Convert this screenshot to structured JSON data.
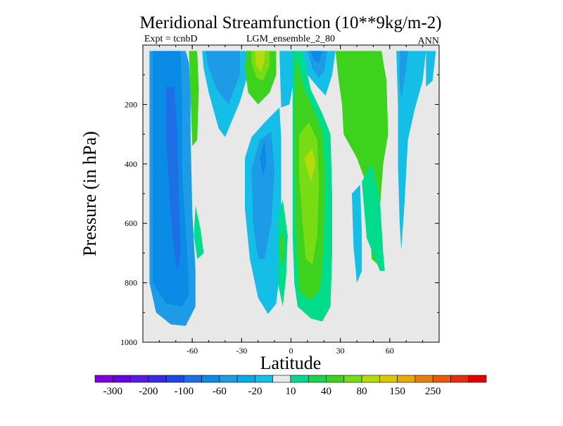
{
  "chart_data": {
    "type": "contour",
    "title": "Meridional Streamfunction (10**9kg/m-2)",
    "left_subtitle": "Expt = tcnbD",
    "center_subtitle": "LGM_ensemble_2_80",
    "right_subtitle": "ANN",
    "xlabel": "Latitude",
    "ylabel": "Pressure (in hPa)",
    "xlim": [
      -90,
      90
    ],
    "ylim": [
      0,
      1000
    ],
    "y_reversed": true,
    "x_ticks": [
      {
        "v": -60,
        "label": "-60"
      },
      {
        "v": -30,
        "label": "-30"
      },
      {
        "v": 0,
        "label": "0"
      },
      {
        "v": 30,
        "label": "30"
      },
      {
        "v": 60,
        "label": "60"
      }
    ],
    "y_ticks": [
      {
        "v": 200,
        "label": "200"
      },
      {
        "v": 400,
        "label": "400"
      },
      {
        "v": 600,
        "label": "600"
      },
      {
        "v": 800,
        "label": "800"
      },
      {
        "v": 1000,
        "label": "1000"
      }
    ],
    "background_color": "#e8e8e8",
    "colorbar": {
      "colors": [
        "#7f00dc",
        "#6a00e6",
        "#5a1ae6",
        "#3a28e6",
        "#1e46e6",
        "#1e6ee6",
        "#0a8ce6",
        "#1e9be6",
        "#0aaae6",
        "#14bee6",
        "#e8e8e8",
        "#00dc8c",
        "#1ed250",
        "#3cd21e",
        "#78dc14",
        "#b4dc0a",
        "#dcc80a",
        "#e6aa0a",
        "#e6800a",
        "#e65a0a",
        "#e62d0a",
        "#e60000"
      ],
      "labels": [
        {
          "after_box": 1,
          "text": "-300"
        },
        {
          "after_box": 3,
          "text": "-200"
        },
        {
          "after_box": 5,
          "text": "-100"
        },
        {
          "after_box": 7,
          "text": "-60"
        },
        {
          "after_box": 9,
          "text": "-20"
        },
        {
          "after_box": 11,
          "text": "10"
        },
        {
          "after_box": 13,
          "text": "40"
        },
        {
          "after_box": 15,
          "text": "80"
        },
        {
          "after_box": 17,
          "text": "150"
        },
        {
          "after_box": 19,
          "text": "250"
        }
      ]
    },
    "regions": [
      {
        "name": "sh-cell",
        "color": "#1e9be6",
        "points": [
          [
            -86,
            20
          ],
          [
            -64,
            20
          ],
          [
            -62,
            60
          ],
          [
            -61,
            150
          ],
          [
            -61,
            300
          ],
          [
            -60,
            560
          ],
          [
            -58,
            760
          ],
          [
            -58,
            880
          ],
          [
            -64,
            945
          ],
          [
            -73,
            940
          ],
          [
            -82,
            900
          ],
          [
            -86,
            800
          ],
          [
            -86,
            500
          ]
        ]
      },
      {
        "name": "sh-cell-inner",
        "color": "#0a8ce6",
        "points": [
          [
            -84,
            20
          ],
          [
            -67,
            20
          ],
          [
            -66,
            200
          ],
          [
            -66,
            450
          ],
          [
            -63,
            700
          ],
          [
            -62,
            840
          ],
          [
            -66,
            880
          ],
          [
            -76,
            870
          ],
          [
            -84,
            800
          ],
          [
            -84,
            400
          ]
        ]
      },
      {
        "name": "sh-cell-core",
        "color": "#1e6ee6",
        "points": [
          [
            -76,
            140
          ],
          [
            -71,
            140
          ],
          [
            -69,
            300
          ],
          [
            -68,
            560
          ],
          [
            -67,
            700
          ],
          [
            -69,
            760
          ],
          [
            -72,
            650
          ],
          [
            -74,
            480
          ],
          [
            -76,
            300
          ]
        ]
      },
      {
        "name": "band-46",
        "color": "#3cd21e",
        "points": [
          [
            -62,
            20
          ],
          [
            -57,
            20
          ],
          [
            -56,
            150
          ],
          [
            -57,
            320
          ],
          [
            -60,
            340
          ]
        ]
      },
      {
        "name": "band-42",
        "color": "#14bee6",
        "points": [
          [
            -54,
            20
          ],
          [
            -25,
            20
          ],
          [
            -25,
            75
          ],
          [
            -31,
            190
          ],
          [
            -40,
            310
          ],
          [
            -44,
            280
          ],
          [
            -50,
            160
          ],
          [
            -53,
            80
          ]
        ]
      },
      {
        "name": "band-42-inner",
        "color": "#1e9be6",
        "points": [
          [
            -52,
            20
          ],
          [
            -31,
            20
          ],
          [
            -31,
            100
          ],
          [
            -38,
            200
          ],
          [
            -45,
            150
          ],
          [
            -50,
            80
          ]
        ]
      },
      {
        "name": "green-lobe-35",
        "color": "#00dc8c",
        "points": [
          [
            -58,
            540
          ],
          [
            -55,
            620
          ],
          [
            -53,
            700
          ],
          [
            -57,
            720
          ],
          [
            -59,
            640
          ]
        ]
      },
      {
        "name": "green-upper-30",
        "color": "#3cd21e",
        "points": [
          [
            -27,
            20
          ],
          [
            -9,
            20
          ],
          [
            -9,
            100
          ],
          [
            -13,
            160
          ],
          [
            -20,
            200
          ],
          [
            -26,
            160
          ],
          [
            -28,
            80
          ]
        ]
      },
      {
        "name": "green-upper-30-inner",
        "color": "#78dc14",
        "points": [
          [
            -24,
            20
          ],
          [
            -13,
            20
          ],
          [
            -13,
            70
          ],
          [
            -17,
            120
          ],
          [
            -21,
            110
          ],
          [
            -24,
            60
          ]
        ]
      },
      {
        "name": "green-upper-30-core",
        "color": "#b4dc0a",
        "points": [
          [
            -22,
            20
          ],
          [
            -16,
            20
          ],
          [
            -16,
            45
          ],
          [
            -18,
            90
          ],
          [
            -21,
            70
          ]
        ]
      },
      {
        "name": "mid-blue-20",
        "color": "#14bee6",
        "points": [
          [
            -28,
            380
          ],
          [
            -24,
            310
          ],
          [
            -16,
            260
          ],
          [
            -7,
            210
          ],
          [
            -6,
            310
          ],
          [
            -6,
            500
          ],
          [
            -6,
            720
          ],
          [
            -9,
            870
          ],
          [
            -14,
            905
          ],
          [
            -20,
            850
          ],
          [
            -25,
            720
          ],
          [
            -28,
            550
          ]
        ]
      },
      {
        "name": "mid-blue-20-inner",
        "color": "#1e9be6",
        "points": [
          [
            -24,
            420
          ],
          [
            -19,
            320
          ],
          [
            -12,
            290
          ],
          [
            -10,
            420
          ],
          [
            -12,
            600
          ],
          [
            -16,
            720
          ],
          [
            -20,
            720
          ],
          [
            -23,
            600
          ]
        ]
      },
      {
        "name": "mid-blue-20-core",
        "color": "#0a8ce6",
        "points": [
          [
            -19,
            380
          ],
          [
            -16,
            320
          ],
          [
            -15,
            400
          ],
          [
            -17,
            440
          ]
        ]
      },
      {
        "name": "green-low-10",
        "color": "#00dc8c",
        "points": [
          [
            -8,
            580
          ],
          [
            -5,
            520
          ],
          [
            -2,
            640
          ],
          [
            -3,
            780
          ],
          [
            -5,
            880
          ],
          [
            -8,
            800
          ]
        ]
      },
      {
        "name": "green-low-10-inner",
        "color": "#3cd21e",
        "points": [
          [
            -7,
            660
          ],
          [
            -5,
            620
          ],
          [
            -4,
            720
          ],
          [
            -6,
            740
          ]
        ]
      },
      {
        "name": "right-blue-10",
        "color": "#14bee6",
        "points": [
          [
            -7,
            20
          ],
          [
            4,
            20
          ],
          [
            3,
            80
          ],
          [
            -1,
            200
          ],
          [
            -6,
            210
          ]
        ]
      },
      {
        "name": "north-green",
        "color": "#00dc8c",
        "points": [
          [
            1,
            20
          ],
          [
            7,
            20
          ],
          [
            12,
            150
          ],
          [
            19,
            230
          ],
          [
            24,
            300
          ],
          [
            25,
            500
          ],
          [
            25,
            700
          ],
          [
            24,
            880
          ],
          [
            19,
            930
          ],
          [
            12,
            920
          ],
          [
            4,
            880
          ],
          [
            2,
            800
          ],
          [
            1,
            640
          ],
          [
            1,
            400
          ],
          [
            1,
            200
          ]
        ]
      },
      {
        "name": "north-green-inner",
        "color": "#3cd21e",
        "points": [
          [
            3,
            40
          ],
          [
            8,
            150
          ],
          [
            14,
            220
          ],
          [
            19,
            290
          ],
          [
            21,
            440
          ],
          [
            20,
            650
          ],
          [
            18,
            820
          ],
          [
            12,
            860
          ],
          [
            5,
            830
          ],
          [
            3,
            650
          ],
          [
            2,
            400
          ],
          [
            2,
            200
          ]
        ]
      },
      {
        "name": "north-green-core",
        "color": "#78dc14",
        "points": [
          [
            5,
            300
          ],
          [
            11,
            260
          ],
          [
            16,
            320
          ],
          [
            17,
            460
          ],
          [
            16,
            640
          ],
          [
            13,
            740
          ],
          [
            9,
            720
          ],
          [
            7,
            600
          ],
          [
            5,
            450
          ]
        ]
      },
      {
        "name": "north-green-peak",
        "color": "#b4dc0a",
        "points": [
          [
            8,
            380
          ],
          [
            13,
            350
          ],
          [
            15,
            400
          ],
          [
            12,
            460
          ],
          [
            10,
            420
          ]
        ]
      },
      {
        "name": "upper-blue-15",
        "color": "#14bee6",
        "points": [
          [
            7,
            20
          ],
          [
            27,
            20
          ],
          [
            25,
            100
          ],
          [
            21,
            170
          ],
          [
            16,
            140
          ],
          [
            10,
            100
          ]
        ]
      },
      {
        "name": "upper-blue-15-inner",
        "color": "#1e9be6",
        "points": [
          [
            10,
            20
          ],
          [
            22,
            20
          ],
          [
            20,
            90
          ],
          [
            17,
            110
          ],
          [
            13,
            80
          ]
        ]
      },
      {
        "name": "upper-blue-15-core",
        "color": "#0a8ce6",
        "points": [
          [
            12,
            20
          ],
          [
            19,
            20
          ],
          [
            17,
            60
          ],
          [
            14,
            50
          ]
        ]
      },
      {
        "name": "n-green-band",
        "color": "#3cd21e",
        "points": [
          [
            27,
            20
          ],
          [
            55,
            20
          ],
          [
            58,
            120
          ],
          [
            59,
            300
          ],
          [
            56,
            400
          ],
          [
            53,
            620
          ],
          [
            54,
            730
          ],
          [
            57,
            760
          ],
          [
            49,
            720
          ],
          [
            48,
            600
          ],
          [
            46,
            470
          ],
          [
            40,
            380
          ],
          [
            32,
            300
          ],
          [
            31,
            200
          ],
          [
            29,
            120
          ]
        ]
      },
      {
        "name": "n-blue-lobe-35",
        "color": "#14bee6",
        "points": [
          [
            37,
            500
          ],
          [
            42,
            470
          ],
          [
            43,
            630
          ],
          [
            43,
            760
          ],
          [
            40,
            800
          ],
          [
            38,
            680
          ]
        ]
      },
      {
        "name": "n-teal-45",
        "color": "#00dc8c",
        "points": [
          [
            43,
            460
          ],
          [
            49,
            400
          ],
          [
            54,
            520
          ],
          [
            56,
            700
          ],
          [
            57,
            760
          ],
          [
            54,
            760
          ],
          [
            46,
            650
          ]
        ]
      },
      {
        "name": "n-gray-gap-65",
        "color": "#e8e8e8",
        "points": [
          [
            60,
            120
          ],
          [
            69,
            150
          ],
          [
            68,
            400
          ],
          [
            66,
            700
          ],
          [
            63,
            760
          ],
          [
            61,
            600
          ],
          [
            60,
            400
          ]
        ]
      },
      {
        "name": "n-blue-70",
        "color": "#14bee6",
        "points": [
          [
            64,
            20
          ],
          [
            82,
            20
          ],
          [
            80,
            120
          ],
          [
            75,
            220
          ],
          [
            71,
            320
          ],
          [
            69,
            530
          ],
          [
            67,
            690
          ],
          [
            66,
            600
          ],
          [
            65,
            400
          ],
          [
            65,
            200
          ]
        ]
      },
      {
        "name": "n-blue-70-inner",
        "color": "#1e9be6",
        "points": [
          [
            66,
            20
          ],
          [
            71,
            20
          ],
          [
            70,
            80
          ],
          [
            67,
            180
          ],
          [
            66,
            120
          ]
        ]
      },
      {
        "name": "n-blue-80",
        "color": "#14bee6",
        "points": [
          [
            82,
            20
          ],
          [
            88,
            20
          ],
          [
            86,
            120
          ],
          [
            82,
            140
          ],
          [
            82,
            80
          ]
        ]
      }
    ]
  }
}
